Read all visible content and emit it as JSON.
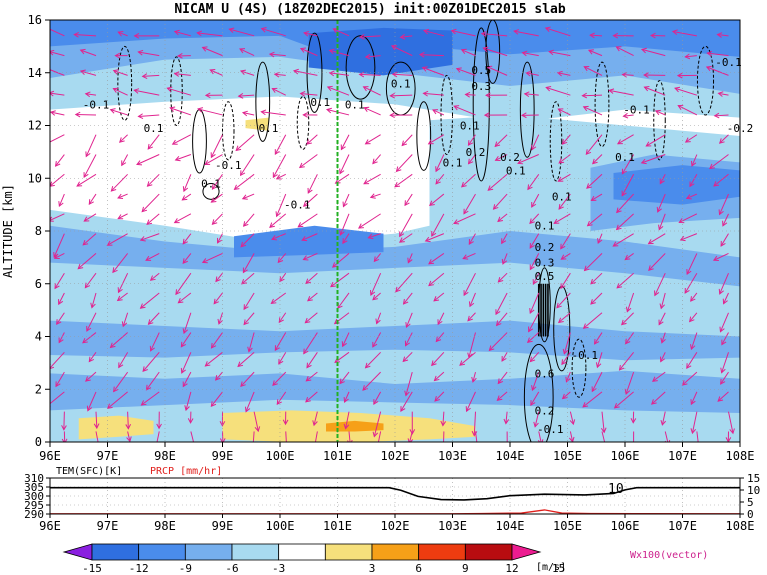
{
  "chart_data": {
    "type": "heatmap",
    "title": "NICAM U (4S) (18Z02DEC2015) init:00Z01DEC2015 slab",
    "ylabel": "ALTITUDE [km]",
    "x_ticks": [
      "96E",
      "97E",
      "98E",
      "99E",
      "100E",
      "101E",
      "102E",
      "103E",
      "104E",
      "105E",
      "106E",
      "107E",
      "108E"
    ],
    "x_range": [
      96,
      108
    ],
    "y_ticks": [
      "0",
      "2",
      "4",
      "6",
      "8",
      "10",
      "12",
      "14",
      "16"
    ],
    "y_range": [
      0,
      16
    ],
    "marker_line_x": 101,
    "contour_labels": [
      {
        "text": "-0.1",
        "x": 96.8,
        "y": 12.8
      },
      {
        "text": "0.1",
        "x": 97.8,
        "y": 11.9
      },
      {
        "text": "0.1",
        "x": 98.8,
        "y": 9.8
      },
      {
        "text": "-0.1",
        "x": 99.1,
        "y": 10.5
      },
      {
        "text": "0.1",
        "x": 99.8,
        "y": 11.9
      },
      {
        "text": "0.1",
        "x": 100.7,
        "y": 12.9
      },
      {
        "text": "-0.1",
        "x": 100.3,
        "y": 9.0
      },
      {
        "text": "0.1",
        "x": 101.3,
        "y": 12.8
      },
      {
        "text": "0.1",
        "x": 102.1,
        "y": 13.6
      },
      {
        "text": "0.1",
        "x": 103.0,
        "y": 10.6
      },
      {
        "text": "0.2",
        "x": 103.4,
        "y": 11.0
      },
      {
        "text": "0.2",
        "x": 104.0,
        "y": 10.8
      },
      {
        "text": "0.1",
        "x": 104.1,
        "y": 10.3
      },
      {
        "text": "0.5",
        "x": 103.5,
        "y": 14.1
      },
      {
        "text": "0.3",
        "x": 103.5,
        "y": 13.5
      },
      {
        "text": "0.1",
        "x": 103.3,
        "y": 12.0
      },
      {
        "text": "0.1",
        "x": 104.9,
        "y": 9.3
      },
      {
        "text": "0.1",
        "x": 104.6,
        "y": 8.2
      },
      {
        "text": "0.2",
        "x": 104.6,
        "y": 7.4
      },
      {
        "text": "0.3",
        "x": 104.6,
        "y": 6.8
      },
      {
        "text": "0.5",
        "x": 104.6,
        "y": 6.3
      },
      {
        "text": "-0.1",
        "x": 105.3,
        "y": 3.3
      },
      {
        "text": "0.6",
        "x": 104.6,
        "y": 2.6
      },
      {
        "text": "0.2",
        "x": 104.6,
        "y": 1.2
      },
      {
        "text": "-0.1",
        "x": 104.7,
        "y": 0.5
      },
      {
        "text": "0.1",
        "x": 106.0,
        "y": 10.8
      },
      {
        "text": "-0.1",
        "x": 106.2,
        "y": 12.6
      },
      {
        "text": "-0.1",
        "x": 107.8,
        "y": 14.4
      },
      {
        "text": "-0.2",
        "x": 108.0,
        "y": 11.9
      }
    ],
    "bottom_panel": {
      "left_label": "TEM(SFC)[K]",
      "right_label": "PRCP [mm/hr]",
      "left_ticks": [
        "290",
        "295",
        "300",
        "305",
        "310"
      ],
      "left_range": [
        290,
        310
      ],
      "right_ticks": [
        "0",
        "5",
        "10",
        "15"
      ],
      "right_range": [
        0,
        15
      ],
      "annotation": "10",
      "temperature": [
        {
          "x": 96,
          "y": 304.6
        },
        {
          "x": 101.9,
          "y": 304.6
        },
        {
          "x": 102.1,
          "y": 303.2
        },
        {
          "x": 102.4,
          "y": 299.8
        },
        {
          "x": 102.8,
          "y": 298.0
        },
        {
          "x": 103.2,
          "y": 297.8
        },
        {
          "x": 103.6,
          "y": 298.5
        },
        {
          "x": 104.0,
          "y": 300.2
        },
        {
          "x": 104.6,
          "y": 301.0
        },
        {
          "x": 105.3,
          "y": 300.6
        },
        {
          "x": 105.8,
          "y": 301.4
        },
        {
          "x": 106.0,
          "y": 303.4
        },
        {
          "x": 106.2,
          "y": 304.6
        },
        {
          "x": 108,
          "y": 304.6
        }
      ],
      "precip": [
        {
          "x": 96,
          "y": 0.1
        },
        {
          "x": 103.0,
          "y": 0.1
        },
        {
          "x": 103.5,
          "y": 0.2
        },
        {
          "x": 104.2,
          "y": 0.4
        },
        {
          "x": 104.6,
          "y": 1.7
        },
        {
          "x": 104.9,
          "y": 0.4
        },
        {
          "x": 105.4,
          "y": 0.2
        },
        {
          "x": 108,
          "y": 0.1
        }
      ]
    },
    "colorbar": {
      "levels": [
        "-15",
        "-12",
        "-9",
        "-6",
        "-3",
        "3",
        "6",
        "9",
        "12",
        "15"
      ],
      "colors": [
        "#8a1fe0",
        "#2f6fe0",
        "#4a8cec",
        "#76afee",
        "#a8daf0",
        "#ffffff",
        "#f6e07c",
        "#f6a018",
        "#ee3c10",
        "#b80c10",
        "#ec1c90"
      ],
      "unit": "[m/s]",
      "vector_label": "Wx100(vector)"
    }
  }
}
